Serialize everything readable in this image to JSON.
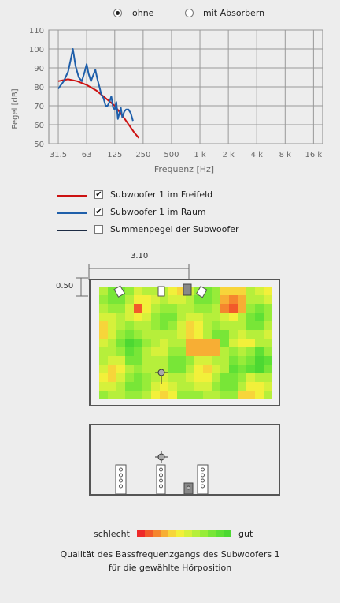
{
  "mode_options": [
    {
      "label": "ohne",
      "selected": true
    },
    {
      "label": "mit Absorbern",
      "selected": false
    }
  ],
  "chart_data": {
    "type": "line",
    "title": "",
    "xlabel": "Frequenz [Hz]",
    "ylabel": "Pegel [dB]",
    "x_scale": "log",
    "xlim": [
      25,
      20000
    ],
    "ylim": [
      50,
      110
    ],
    "x_ticks": [
      {
        "value": 31.5,
        "label": "31.5"
      },
      {
        "value": 63,
        "label": "63"
      },
      {
        "value": 125,
        "label": "125"
      },
      {
        "value": 250,
        "label": "250"
      },
      {
        "value": 500,
        "label": "500"
      },
      {
        "value": 1000,
        "label": "1 k"
      },
      {
        "value": 2000,
        "label": "2 k"
      },
      {
        "value": 4000,
        "label": "4 k"
      },
      {
        "value": 8000,
        "label": "8 k"
      },
      {
        "value": 16000,
        "label": "16 k"
      }
    ],
    "y_ticks": [
      50,
      60,
      70,
      80,
      90,
      100,
      110
    ],
    "grid": true,
    "series": [
      {
        "name": "Subwoofer 1 im Freifeld",
        "color": "#cc1111",
        "points": [
          [
            31.5,
            83
          ],
          [
            40,
            84
          ],
          [
            50,
            83
          ],
          [
            63,
            81
          ],
          [
            80,
            78
          ],
          [
            100,
            74
          ],
          [
            125,
            70
          ],
          [
            160,
            63
          ],
          [
            200,
            56
          ],
          [
            225,
            53
          ]
        ]
      },
      {
        "name": "Subwoofer 1 im Raum",
        "color": "#1f5faa",
        "points": [
          [
            31.5,
            79
          ],
          [
            36,
            83
          ],
          [
            40,
            88
          ],
          [
            43,
            95
          ],
          [
            45,
            100
          ],
          [
            48,
            91
          ],
          [
            52,
            85
          ],
          [
            56,
            83
          ],
          [
            60,
            88
          ],
          [
            63,
            92
          ],
          [
            66,
            87
          ],
          [
            70,
            83
          ],
          [
            75,
            87
          ],
          [
            78,
            89
          ],
          [
            82,
            84
          ],
          [
            86,
            80
          ],
          [
            90,
            76
          ],
          [
            95,
            74
          ],
          [
            100,
            70
          ],
          [
            105,
            70
          ],
          [
            110,
            72
          ],
          [
            115,
            75
          ],
          [
            120,
            69
          ],
          [
            125,
            68
          ],
          [
            130,
            72
          ],
          [
            135,
            63
          ],
          [
            140,
            66
          ],
          [
            145,
            69
          ],
          [
            150,
            64
          ],
          [
            158,
            67
          ],
          [
            165,
            68
          ],
          [
            175,
            68
          ],
          [
            185,
            66
          ],
          [
            195,
            62
          ]
        ]
      }
    ]
  },
  "legend": [
    {
      "label": "Subwoofer 1 im Freifeld",
      "color": "#cc1111",
      "checked": true,
      "mark": "✔"
    },
    {
      "label": "Subwoofer 1 im Raum",
      "color": "#1f5faa",
      "checked": true,
      "mark": "✔"
    },
    {
      "label": "Summenpegel der Subwoofer",
      "color": "#1c2b44",
      "checked": false,
      "mark": ""
    }
  ],
  "room": {
    "dim_width": "3.10",
    "dim_depth": "0.50"
  },
  "quality_scale": {
    "bad_label": "schlecht",
    "good_label": "gut",
    "colors": [
      "#ee2a2a",
      "#f25a2a",
      "#f5862e",
      "#f7ae34",
      "#f7d53a",
      "#f2f03a",
      "#d6f13b",
      "#b6ef3b",
      "#97ec39",
      "#78e637",
      "#5ee035",
      "#4cd832"
    ]
  },
  "caption": {
    "line1": "Qualität des Bassfrequenzgangs des Subwoofers 1",
    "line2": "für die gewählte Hörposition"
  }
}
